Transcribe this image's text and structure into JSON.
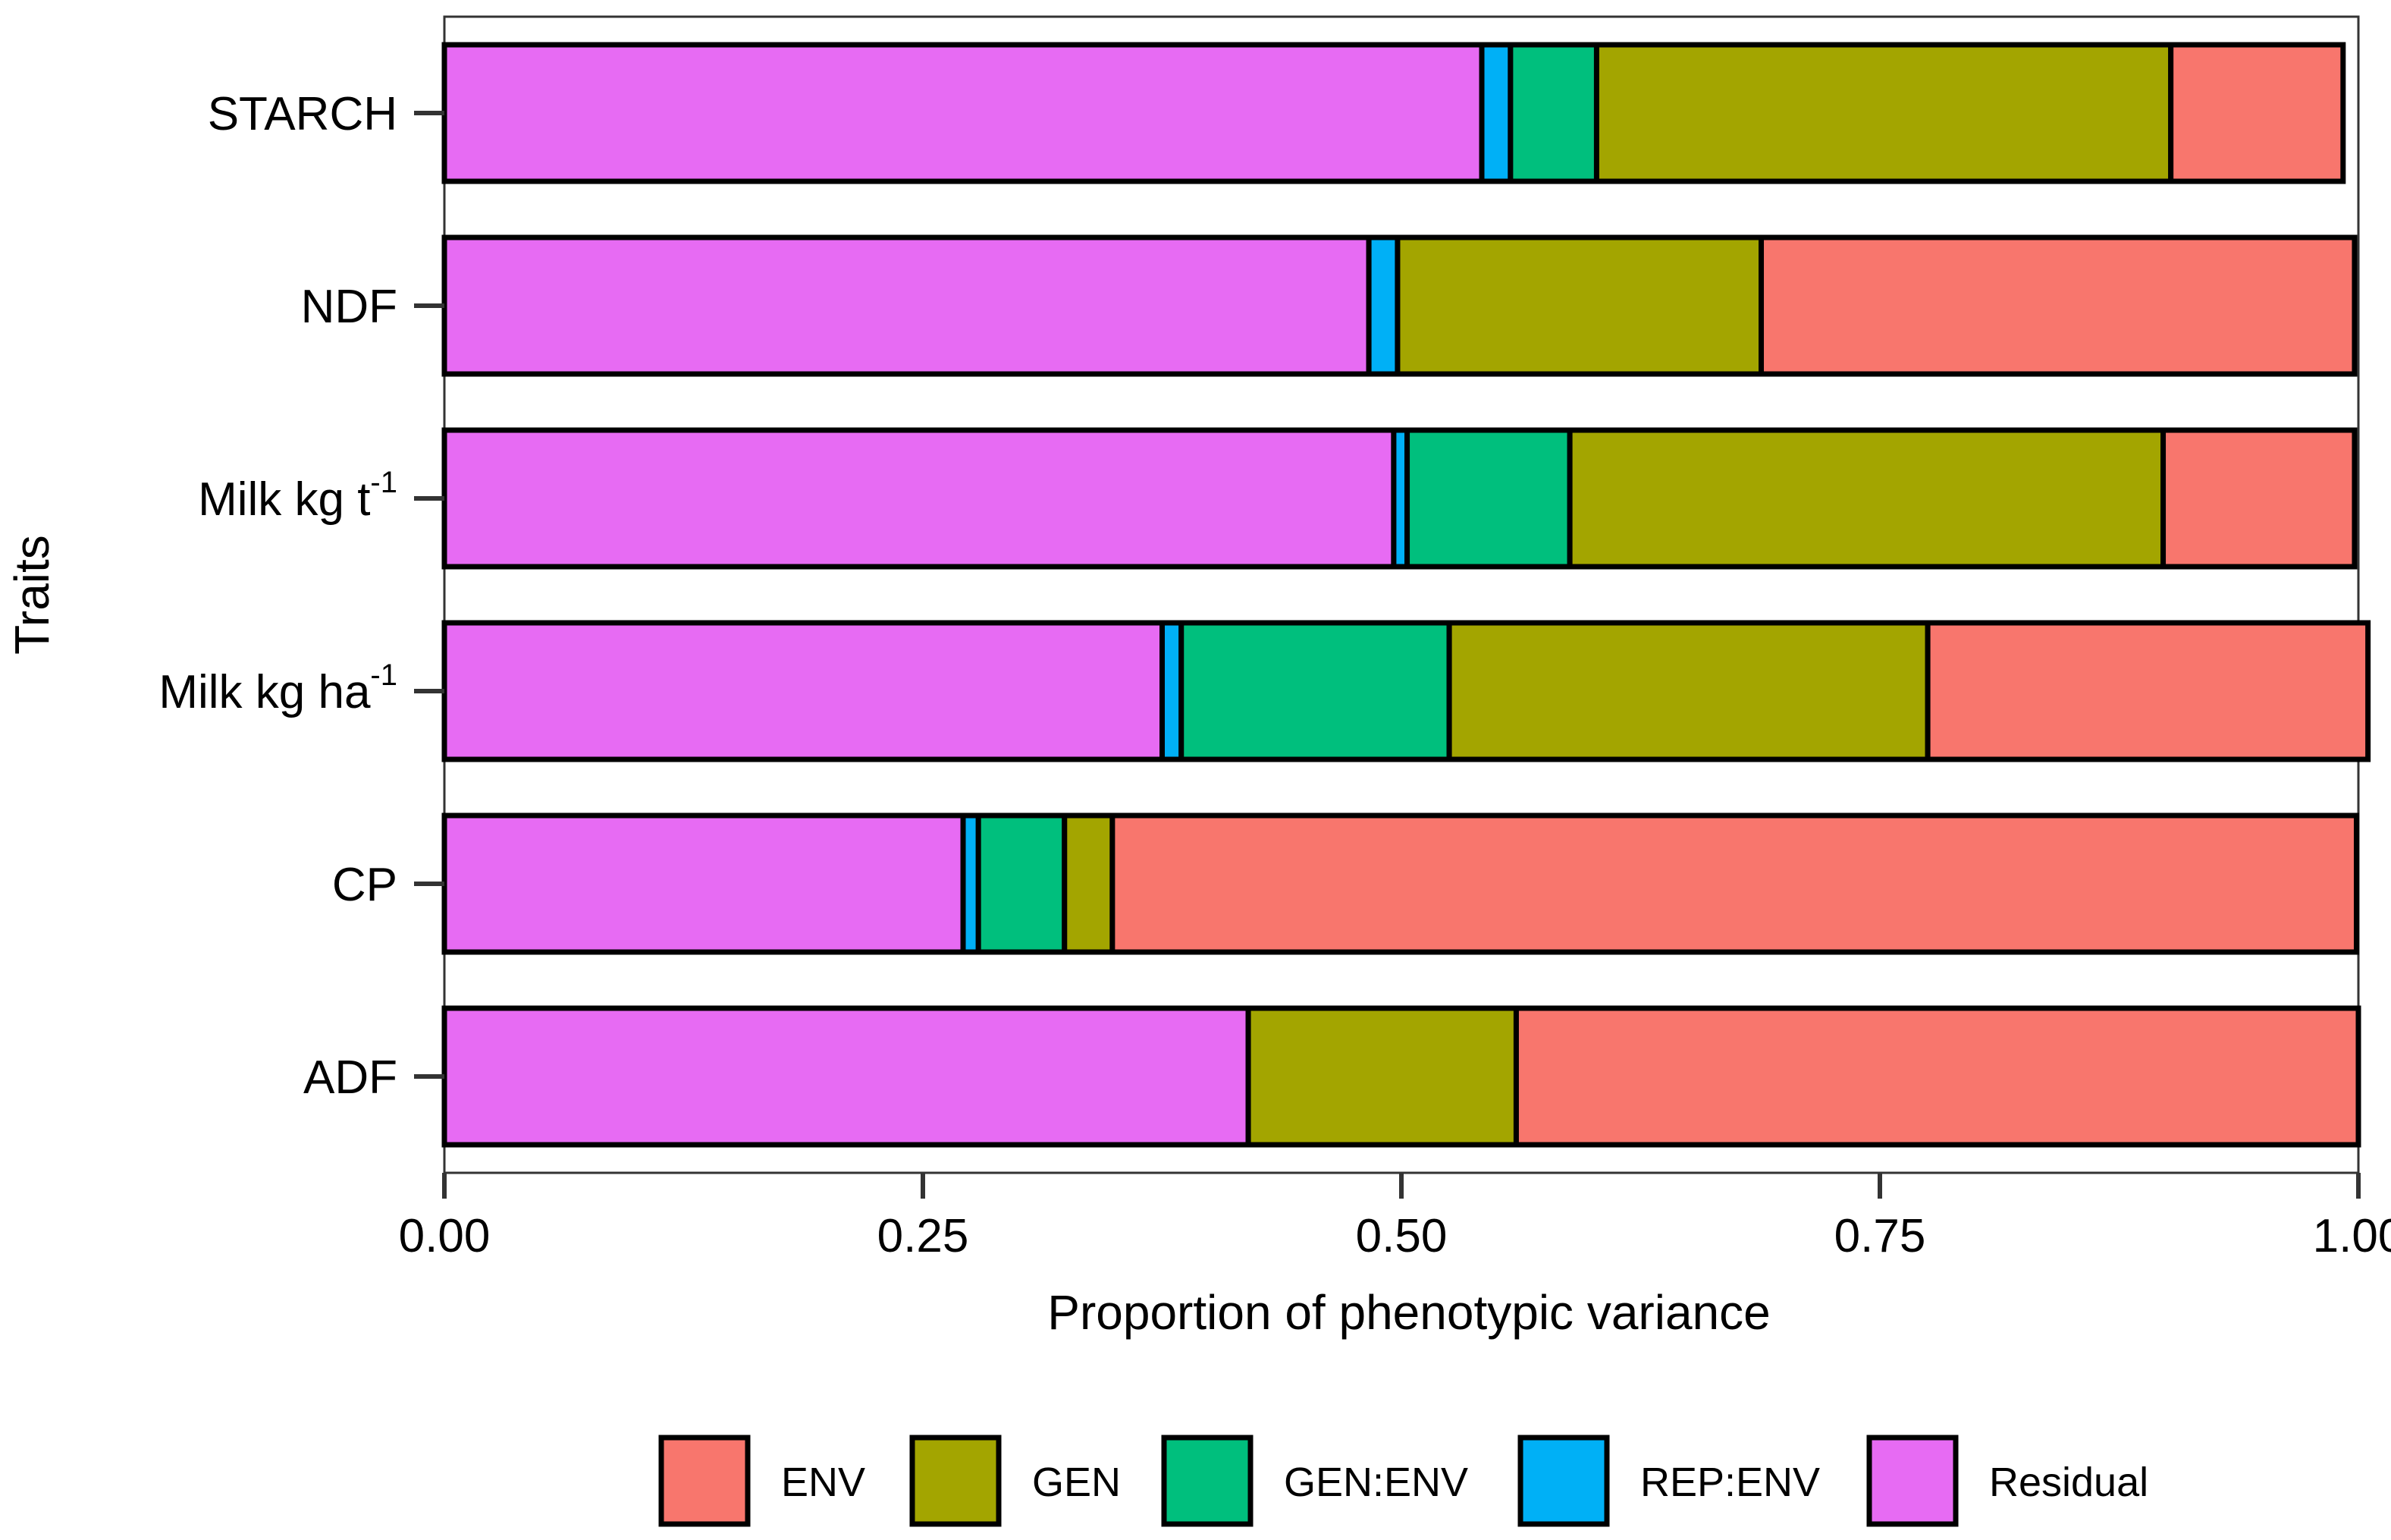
{
  "chart_data": {
    "type": "bar",
    "orientation": "horizontal",
    "stacked": true,
    "title": "",
    "xlabel": "Proportion of phenotypic variance",
    "ylabel": "Traits",
    "xlim": [
      0,
      1
    ],
    "x_ticks": [
      "0.00",
      "0.25",
      "0.50",
      "0.75",
      "1.00"
    ],
    "categories": [
      {
        "id": "STARCH",
        "label": "STARCH",
        "sup": ""
      },
      {
        "id": "NDF",
        "label": "NDF",
        "sup": ""
      },
      {
        "id": "Milk_t",
        "label": "Milk kg t",
        "sup": "-1"
      },
      {
        "id": "Milk_ha",
        "label": "Milk kg ha",
        "sup": "-1"
      },
      {
        "id": "CP",
        "label": "CP",
        "sup": ""
      },
      {
        "id": "ADF",
        "label": "ADF",
        "sup": ""
      }
    ],
    "stack_order": [
      "Residual",
      "REP:ENV",
      "GEN:ENV",
      "GEN",
      "ENV"
    ],
    "series": [
      {
        "name": "ENV",
        "color": "#F8766D",
        "values": [
          0.09,
          0.31,
          0.1,
          0.23,
          0.65,
          0.44
        ]
      },
      {
        "name": "GEN",
        "color": "#A3A500",
        "values": [
          0.3,
          0.19,
          0.31,
          0.25,
          0.025,
          0.14
        ]
      },
      {
        "name": "GEN:ENV",
        "color": "#00BF7D",
        "values": [
          0.045,
          0.0,
          0.085,
          0.14,
          0.045,
          0.0
        ]
      },
      {
        "name": "REP:ENV",
        "color": "#00B0F6",
        "values": [
          0.015,
          0.015,
          0.007,
          0.01,
          0.008,
          0.0
        ]
      },
      {
        "name": "Residual",
        "color": "#E76BF3",
        "values": [
          0.542,
          0.483,
          0.496,
          0.375,
          0.271,
          0.42
        ]
      }
    ],
    "legend": {
      "position": "bottom",
      "entries": [
        "ENV",
        "GEN",
        "GEN:ENV",
        "REP:ENV",
        "Residual"
      ]
    }
  }
}
